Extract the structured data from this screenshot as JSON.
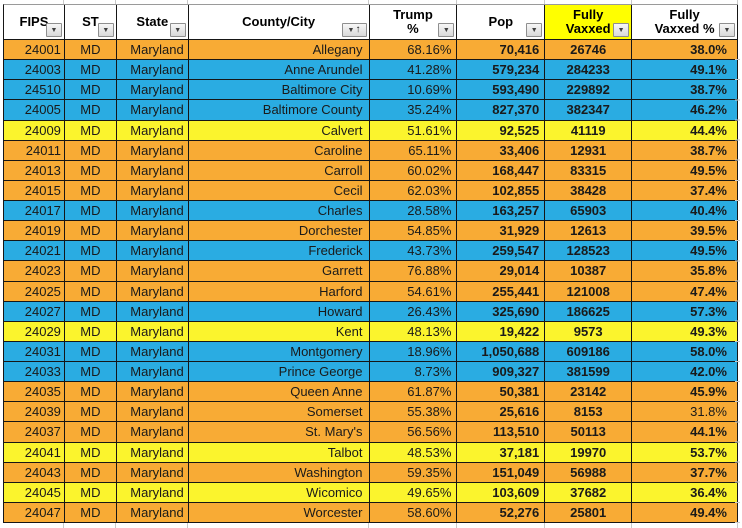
{
  "colors": {
    "row_orange": "#F8AB35",
    "row_blue": "#2AACE2",
    "row_yellow": "#FBF42D",
    "header_bg": "#FFFFFF",
    "header_highlight": "#FFFF00",
    "grid_border": "#161616",
    "stub_line": "#C9C9C9",
    "text": "#1A1A1A"
  },
  "icons": {
    "filter_dropdown": "▼",
    "sort_ascending": "↑"
  },
  "table": {
    "columns": [
      {
        "key": "fips",
        "label_lines": [
          "FIPS"
        ],
        "has_filter": true,
        "sorted": false,
        "highlight": false
      },
      {
        "key": "st",
        "label_lines": [
          "ST"
        ],
        "has_filter": true,
        "sorted": false,
        "highlight": false
      },
      {
        "key": "state",
        "label_lines": [
          "State"
        ],
        "has_filter": true,
        "sorted": false,
        "highlight": false
      },
      {
        "key": "county",
        "label_lines": [
          "County/City"
        ],
        "has_filter": true,
        "sorted": true,
        "highlight": false
      },
      {
        "key": "trump_pct",
        "label_lines": [
          "Trump",
          "%"
        ],
        "has_filter": true,
        "sorted": false,
        "highlight": false
      },
      {
        "key": "pop",
        "label_lines": [
          "Pop"
        ],
        "has_filter": true,
        "sorted": false,
        "highlight": false
      },
      {
        "key": "fully_vaxxed",
        "label_lines": [
          "Fully",
          "Vaxxed"
        ],
        "has_filter": true,
        "sorted": false,
        "highlight": true
      },
      {
        "key": "fully_vaxxed_pct",
        "label_lines": [
          "Fully",
          "Vaxxed %"
        ],
        "has_filter": true,
        "sorted": false,
        "highlight": false
      }
    ],
    "rows": [
      {
        "fips": "24001",
        "st": "MD",
        "state": "Maryland",
        "county": "Allegany",
        "trump_pct": "68.16%",
        "pop": "70,416",
        "fully_vaxxed": "26746",
        "fully_vaxxed_pct": "38.0%",
        "color": "orange"
      },
      {
        "fips": "24003",
        "st": "MD",
        "state": "Maryland",
        "county": "Anne Arundel",
        "trump_pct": "41.28%",
        "pop": "579,234",
        "fully_vaxxed": "284233",
        "fully_vaxxed_pct": "49.1%",
        "color": "blue"
      },
      {
        "fips": "24510",
        "st": "MD",
        "state": "Maryland",
        "county": "Baltimore City",
        "trump_pct": "10.69%",
        "pop": "593,490",
        "fully_vaxxed": "229892",
        "fully_vaxxed_pct": "38.7%",
        "color": "blue"
      },
      {
        "fips": "24005",
        "st": "MD",
        "state": "Maryland",
        "county": "Baltimore County",
        "trump_pct": "35.24%",
        "pop": "827,370",
        "fully_vaxxed": "382347",
        "fully_vaxxed_pct": "46.2%",
        "color": "blue"
      },
      {
        "fips": "24009",
        "st": "MD",
        "state": "Maryland",
        "county": "Calvert",
        "trump_pct": "51.61%",
        "pop": "92,525",
        "fully_vaxxed": "41119",
        "fully_vaxxed_pct": "44.4%",
        "color": "yellow"
      },
      {
        "fips": "24011",
        "st": "MD",
        "state": "Maryland",
        "county": "Caroline",
        "trump_pct": "65.11%",
        "pop": "33,406",
        "fully_vaxxed": "12931",
        "fully_vaxxed_pct": "38.7%",
        "color": "orange"
      },
      {
        "fips": "24013",
        "st": "MD",
        "state": "Maryland",
        "county": "Carroll",
        "trump_pct": "60.02%",
        "pop": "168,447",
        "fully_vaxxed": "83315",
        "fully_vaxxed_pct": "49.5%",
        "color": "orange"
      },
      {
        "fips": "24015",
        "st": "MD",
        "state": "Maryland",
        "county": "Cecil",
        "trump_pct": "62.03%",
        "pop": "102,855",
        "fully_vaxxed": "38428",
        "fully_vaxxed_pct": "37.4%",
        "color": "orange"
      },
      {
        "fips": "24017",
        "st": "MD",
        "state": "Maryland",
        "county": "Charles",
        "trump_pct": "28.58%",
        "pop": "163,257",
        "fully_vaxxed": "65903",
        "fully_vaxxed_pct": "40.4%",
        "color": "blue"
      },
      {
        "fips": "24019",
        "st": "MD",
        "state": "Maryland",
        "county": "Dorchester",
        "trump_pct": "54.85%",
        "pop": "31,929",
        "fully_vaxxed": "12613",
        "fully_vaxxed_pct": "39.5%",
        "color": "orange"
      },
      {
        "fips": "24021",
        "st": "MD",
        "state": "Maryland",
        "county": "Frederick",
        "trump_pct": "43.73%",
        "pop": "259,547",
        "fully_vaxxed": "128523",
        "fully_vaxxed_pct": "49.5%",
        "color": "blue"
      },
      {
        "fips": "24023",
        "st": "MD",
        "state": "Maryland",
        "county": "Garrett",
        "trump_pct": "76.88%",
        "pop": "29,014",
        "fully_vaxxed": "10387",
        "fully_vaxxed_pct": "35.8%",
        "color": "orange"
      },
      {
        "fips": "24025",
        "st": "MD",
        "state": "Maryland",
        "county": "Harford",
        "trump_pct": "54.61%",
        "pop": "255,441",
        "fully_vaxxed": "121008",
        "fully_vaxxed_pct": "47.4%",
        "color": "orange"
      },
      {
        "fips": "24027",
        "st": "MD",
        "state": "Maryland",
        "county": "Howard",
        "trump_pct": "26.43%",
        "pop": "325,690",
        "fully_vaxxed": "186625",
        "fully_vaxxed_pct": "57.3%",
        "color": "blue"
      },
      {
        "fips": "24029",
        "st": "MD",
        "state": "Maryland",
        "county": "Kent",
        "trump_pct": "48.13%",
        "pop": "19,422",
        "fully_vaxxed": "9573",
        "fully_vaxxed_pct": "49.3%",
        "color": "yellow"
      },
      {
        "fips": "24031",
        "st": "MD",
        "state": "Maryland",
        "county": "Montgomery",
        "trump_pct": "18.96%",
        "pop": "1,050,688",
        "fully_vaxxed": "609186",
        "fully_vaxxed_pct": "58.0%",
        "color": "blue"
      },
      {
        "fips": "24033",
        "st": "MD",
        "state": "Maryland",
        "county": "Prince George",
        "trump_pct": "8.73%",
        "pop": "909,327",
        "fully_vaxxed": "381599",
        "fully_vaxxed_pct": "42.0%",
        "color": "blue"
      },
      {
        "fips": "24035",
        "st": "MD",
        "state": "Maryland",
        "county": "Queen Anne",
        "trump_pct": "61.87%",
        "pop": "50,381",
        "fully_vaxxed": "23142",
        "fully_vaxxed_pct": "45.9%",
        "color": "orange"
      },
      {
        "fips": "24039",
        "st": "MD",
        "state": "Maryland",
        "county": "Somerset",
        "trump_pct": "55.38%",
        "pop": "25,616",
        "fully_vaxxed": "8153",
        "fully_vaxxed_pct": "31.8%",
        "color": "orange",
        "fully_vaxxed_pct_bold": false
      },
      {
        "fips": "24037",
        "st": "MD",
        "state": "Maryland",
        "county": "St. Mary's",
        "trump_pct": "56.56%",
        "pop": "113,510",
        "fully_vaxxed": "50113",
        "fully_vaxxed_pct": "44.1%",
        "color": "orange"
      },
      {
        "fips": "24041",
        "st": "MD",
        "state": "Maryland",
        "county": "Talbot",
        "trump_pct": "48.53%",
        "pop": "37,181",
        "fully_vaxxed": "19970",
        "fully_vaxxed_pct": "53.7%",
        "color": "yellow"
      },
      {
        "fips": "24043",
        "st": "MD",
        "state": "Maryland",
        "county": "Washington",
        "trump_pct": "59.35%",
        "pop": "151,049",
        "fully_vaxxed": "56988",
        "fully_vaxxed_pct": "37.7%",
        "color": "orange"
      },
      {
        "fips": "24045",
        "st": "MD",
        "state": "Maryland",
        "county": "Wicomico",
        "trump_pct": "49.65%",
        "pop": "103,609",
        "fully_vaxxed": "37682",
        "fully_vaxxed_pct": "36.4%",
        "color": "yellow"
      },
      {
        "fips": "24047",
        "st": "MD",
        "state": "Maryland",
        "county": "Worcester",
        "trump_pct": "58.60%",
        "pop": "52,276",
        "fully_vaxxed": "25801",
        "fully_vaxxed_pct": "49.4%",
        "color": "orange"
      }
    ]
  }
}
